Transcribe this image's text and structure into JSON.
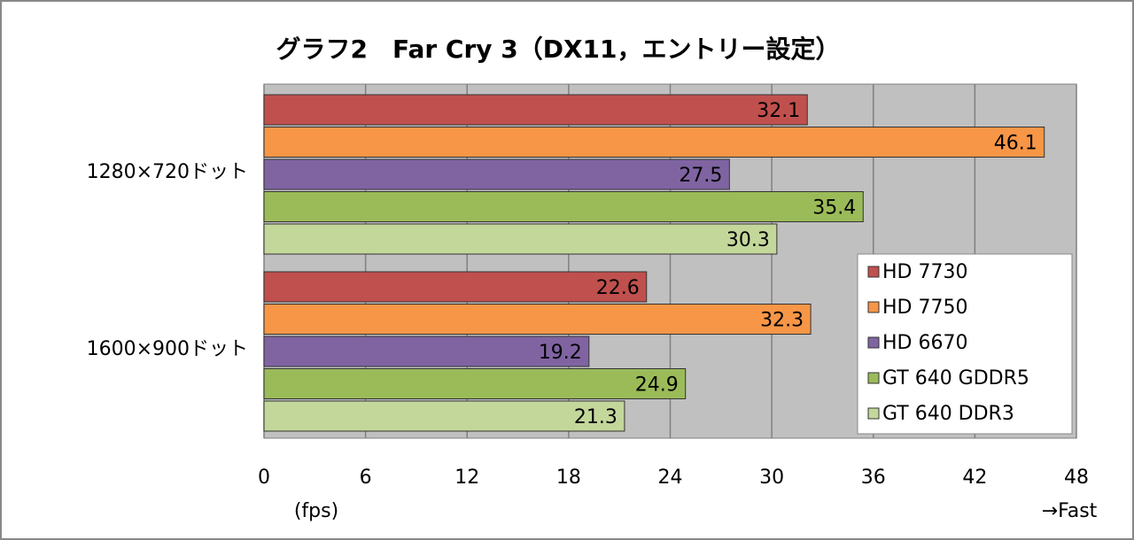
{
  "chart_data": {
    "type": "hbar",
    "title": "グラフ2　Far Cry 3（DX11，エントリー設定）",
    "categories": [
      "1280×720ドット",
      "1600×900ドット"
    ],
    "series": [
      {
        "name": "HD 7730",
        "color": "#c0504d",
        "values": [
          32.1,
          22.6
        ]
      },
      {
        "name": "HD 7750",
        "color": "#f79646",
        "values": [
          46.1,
          32.3
        ]
      },
      {
        "name": "HD 6670",
        "color": "#8064a2",
        "values": [
          27.5,
          19.2
        ]
      },
      {
        "name": "GT 640 GDDR5",
        "color": "#9bbb59",
        "values": [
          35.4,
          24.9
        ]
      },
      {
        "name": "GT 640 DDR3",
        "color": "#c4d79b",
        "values": [
          30.3,
          21.3
        ]
      }
    ],
    "xlim": [
      0,
      48
    ],
    "xticks": [
      0,
      6,
      12,
      18,
      24,
      30,
      36,
      42,
      48
    ],
    "x_label": "(fps)",
    "annotation": "→Fast",
    "grid": true,
    "legend": "lower right"
  }
}
